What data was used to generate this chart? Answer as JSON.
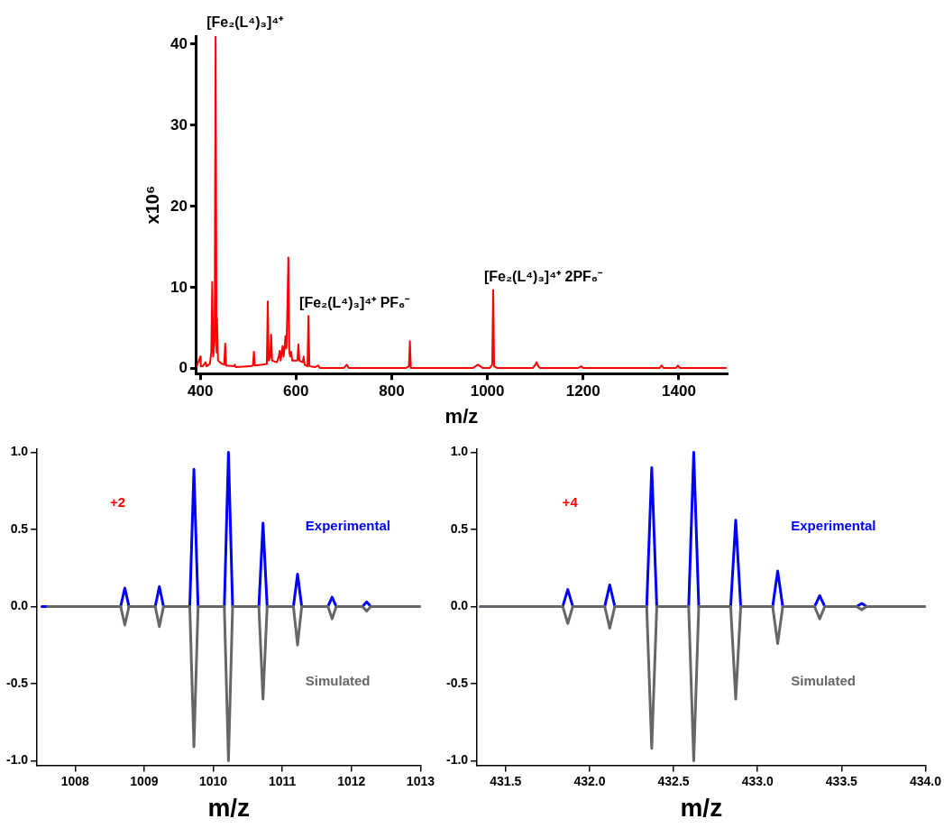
{
  "chart_data": [
    {
      "type": "line",
      "xlabel": "m/z",
      "ylabel": "x10⁶",
      "color": "#ff0000",
      "x": [
        392,
        400,
        401,
        405,
        411,
        413,
        420,
        423,
        425,
        427,
        430,
        432,
        434,
        435,
        437,
        445,
        450,
        452,
        454,
        470,
        472,
        474,
        505,
        510,
        512,
        514,
        530,
        539,
        541,
        543,
        546,
        548,
        550,
        560,
        564,
        566,
        568,
        570,
        572,
        574,
        576,
        578,
        580,
        582,
        584,
        586,
        588,
        590,
        592,
        603,
        605,
        607,
        614,
        616,
        618,
        624,
        626,
        628,
        640,
        646,
        650,
        700,
        706,
        710,
        830,
        836,
        838,
        840,
        970,
        980,
        990,
        1005,
        1010,
        1012,
        1014,
        1020,
        1095,
        1100,
        1103,
        1106,
        1110,
        1190,
        1196,
        1200,
        1360,
        1364,
        1368,
        1394,
        1398,
        1402,
        1500
      ],
      "values": [
        0.2,
        1.5,
        0.3,
        0.3,
        0.8,
        0.3,
        0.6,
        2,
        10.7,
        1.5,
        3.5,
        41,
        2,
        6.2,
        1,
        0.6,
        0.5,
        3.1,
        0.4,
        0.3,
        0.5,
        0.2,
        0.3,
        0.4,
        2.1,
        0.4,
        0.5,
        0.6,
        8.3,
        1,
        1.5,
        4.2,
        1,
        0.8,
        1.5,
        2.2,
        1,
        2,
        2.8,
        1.5,
        2.5,
        4,
        2.5,
        7.5,
        13.7,
        2,
        1.5,
        2.1,
        1,
        1,
        3,
        1,
        0.8,
        1.5,
        0.5,
        0.3,
        6.5,
        0.3,
        0.2,
        0.4,
        0.1,
        0.1,
        0.5,
        0.1,
        0.1,
        0.3,
        3.4,
        0.1,
        0.1,
        0.5,
        0.1,
        0.1,
        0.5,
        9.7,
        0.3,
        0.1,
        0.1,
        0.5,
        0.8,
        0.3,
        0.1,
        0.1,
        0.3,
        0.1,
        0.1,
        0.4,
        0.1,
        0.1,
        0.4,
        0.1,
        0.1
      ],
      "xlim": [
        392,
        1500
      ],
      "xticks": [
        400,
        600,
        800,
        1000,
        1200,
        1400
      ],
      "ylim": [
        -0.6,
        41
      ],
      "yticks": [
        0,
        10,
        20,
        30,
        40
      ],
      "annotations": [
        {
          "text": "[Fe₂(L⁴)₃]⁴⁺",
          "x": 432,
          "y": 41
        },
        {
          "text": "[Fe₂(L⁴)₃]⁴⁺ PF₆⁻",
          "x": 626,
          "y": 6.5
        },
        {
          "text": "[Fe₂(L⁴)₃]⁴⁺ 2PF₆⁻",
          "x": 1012,
          "y": 9.7
        }
      ]
    },
    {
      "type": "line",
      "xlabel": "m/z",
      "series": [
        {
          "name": "Experimental",
          "color": "#0000ff",
          "x": [
            1007.52,
            1007.7,
            1008.66,
            1008.72,
            1008.78,
            1009.16,
            1009.22,
            1009.28,
            1009.66,
            1009.72,
            1009.78,
            1010.16,
            1010.22,
            1010.28,
            1010.66,
            1010.72,
            1010.78,
            1011.16,
            1011.22,
            1011.28,
            1011.66,
            1011.72,
            1011.78,
            1012.16,
            1012.22,
            1012.28,
            1013
          ],
          "values": [
            0,
            0,
            0,
            0.12,
            0,
            0,
            0.13,
            0,
            0,
            0.89,
            0,
            0,
            1.0,
            0,
            0,
            0.54,
            0,
            0,
            0.21,
            0,
            0,
            0.06,
            0,
            0,
            0.03,
            0,
            0
          ]
        },
        {
          "name": "Simulated",
          "color": "#666666",
          "x": [
            1007.6,
            1008.66,
            1008.72,
            1008.78,
            1009.16,
            1009.22,
            1009.28,
            1009.66,
            1009.72,
            1009.78,
            1010.16,
            1010.22,
            1010.28,
            1010.66,
            1010.72,
            1010.78,
            1011.16,
            1011.22,
            1011.28,
            1011.66,
            1011.72,
            1011.78,
            1012.16,
            1012.22,
            1012.28,
            1013
          ],
          "values": [
            0,
            0,
            -0.12,
            0,
            0,
            -0.13,
            0,
            0,
            -0.91,
            0,
            0,
            -1.0,
            0,
            0,
            -0.6,
            0,
            0,
            -0.25,
            0,
            0,
            -0.08,
            0,
            0,
            -0.03,
            0,
            0
          ]
        }
      ],
      "xlim": [
        1007.45,
        1013
      ],
      "xticks": [
        1008,
        1009,
        1010,
        1011,
        1012,
        1013
      ],
      "ylim": [
        -1.03,
        1.02
      ],
      "yticks": [
        {
          "value": -1,
          "label": "-1.0"
        },
        {
          "value": -0.5,
          "label": "-0.5"
        },
        {
          "value": 0,
          "label": "0.0"
        },
        {
          "value": 0.5,
          "label": "0.5"
        },
        {
          "value": 1,
          "label": "1.0"
        }
      ],
      "annotations": [
        "+2"
      ]
    },
    {
      "type": "line",
      "xlabel": "m/z",
      "series": [
        {
          "name": "Experimental",
          "color": "#0000ff",
          "x": [
            431.35,
            431.84,
            431.87,
            431.9,
            432.09,
            432.12,
            432.15,
            432.34,
            432.37,
            432.4,
            432.59,
            432.62,
            432.65,
            432.84,
            432.87,
            432.9,
            433.09,
            433.12,
            433.15,
            433.34,
            433.37,
            433.4,
            433.59,
            433.62,
            433.65,
            434.0
          ],
          "values": [
            0,
            0,
            0.11,
            0,
            0,
            0.14,
            0,
            0,
            0.9,
            0,
            0,
            1.0,
            0,
            0,
            0.56,
            0,
            0,
            0.23,
            0,
            0,
            0.07,
            0,
            0,
            0.02,
            0,
            0
          ]
        },
        {
          "name": "Simulated",
          "color": "#666666",
          "x": [
            431.35,
            431.84,
            431.87,
            431.9,
            432.09,
            432.12,
            432.15,
            432.34,
            432.37,
            432.4,
            432.59,
            432.62,
            432.65,
            432.84,
            432.87,
            432.9,
            433.09,
            433.12,
            433.15,
            433.34,
            433.37,
            433.4,
            433.59,
            433.62,
            433.65,
            434.0
          ],
          "values": [
            0,
            0,
            -0.11,
            0,
            0,
            -0.14,
            0,
            0,
            -0.92,
            0,
            0,
            -1.0,
            0,
            0,
            -0.6,
            0,
            0,
            -0.24,
            0,
            0,
            -0.08,
            0,
            0,
            -0.02,
            0,
            0
          ]
        }
      ],
      "xlim": [
        431.33,
        434.0
      ],
      "xticks": [
        {
          "value": 431.5,
          "label": "431.5"
        },
        {
          "value": 432,
          "label": "432.0"
        },
        {
          "value": 432.5,
          "label": "432.5"
        },
        {
          "value": 433,
          "label": "433.0"
        },
        {
          "value": 433.5,
          "label": "433.5"
        },
        {
          "value": 434,
          "label": "434.0"
        }
      ],
      "ylim": [
        -1.03,
        1.02
      ],
      "yticks": [
        {
          "value": -1,
          "label": "-1.0"
        },
        {
          "value": -0.5,
          "label": "-0.5"
        },
        {
          "value": 0,
          "label": "0.0"
        },
        {
          "value": 0.5,
          "label": "0.5"
        },
        {
          "value": 1,
          "label": "1.0"
        }
      ],
      "annotations": [
        "+4"
      ]
    }
  ]
}
